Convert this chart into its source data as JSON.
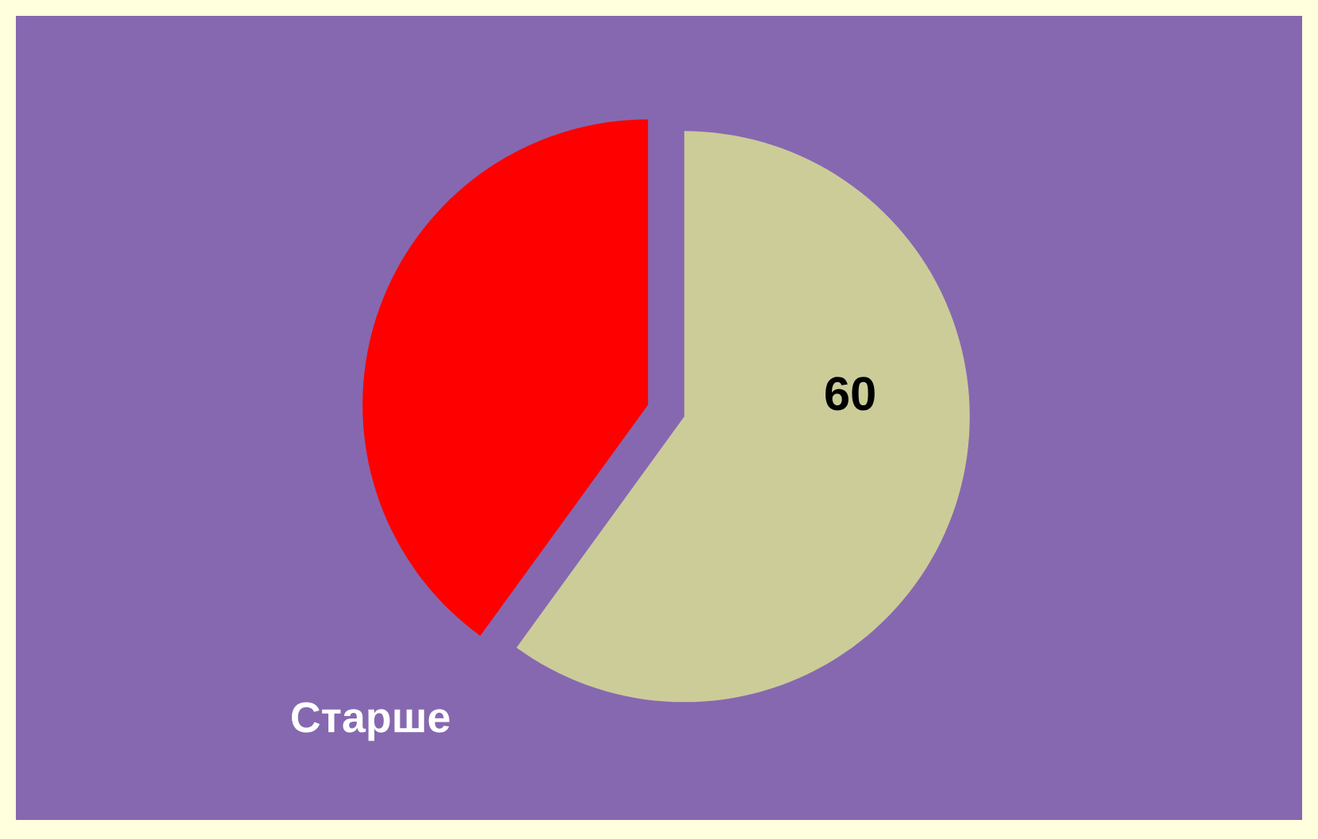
{
  "chart_data": {
    "type": "pie",
    "categories": [
      "Старше",
      null
    ],
    "values": [
      40,
      60
    ],
    "colors": [
      "#ff0000",
      "#cccc99"
    ],
    "value_labels": [
      null,
      "60"
    ]
  }
}
